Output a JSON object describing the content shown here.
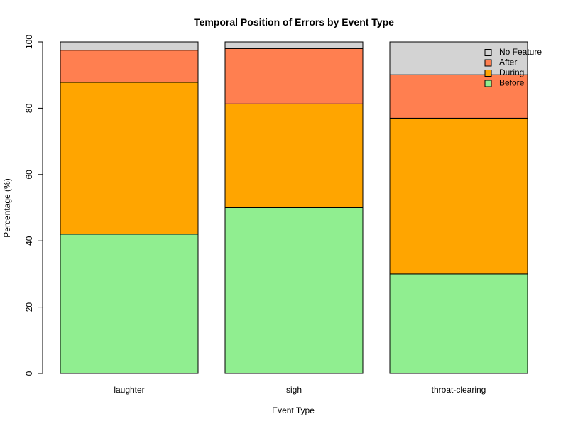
{
  "chart_data": {
    "type": "bar",
    "stacked": true,
    "title": "Temporal Position of Errors by Event Type",
    "xlabel": "Event Type",
    "ylabel": "Percentage (%)",
    "ylim": [
      0,
      100
    ],
    "yticks": [
      0,
      20,
      40,
      60,
      80,
      100
    ],
    "grid": false,
    "legend_position": "top-right",
    "categories": [
      "laughter",
      "sigh",
      "throat-clearing"
    ],
    "series": [
      {
        "name": "Before",
        "color": "#90EE90",
        "values": [
          42,
          50,
          30
        ]
      },
      {
        "name": "During",
        "color": "#FFA500",
        "values": [
          45.8,
          31.3,
          47
        ]
      },
      {
        "name": "After",
        "color": "#FF7F50",
        "values": [
          9.7,
          16.7,
          13.1
        ]
      },
      {
        "name": "No Feature",
        "color": "#D3D3D3",
        "values": [
          2.5,
          2,
          9.9
        ]
      }
    ],
    "legend_order": [
      "No Feature",
      "After",
      "During",
      "Before"
    ]
  }
}
